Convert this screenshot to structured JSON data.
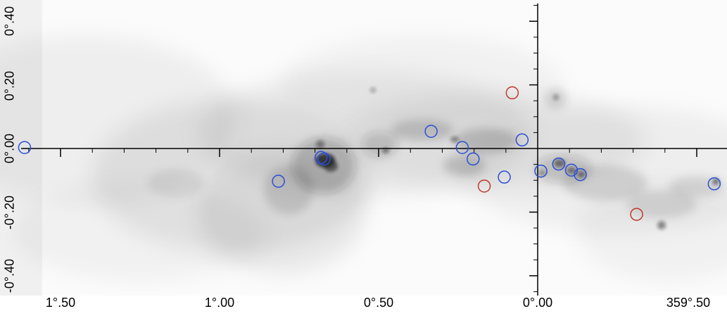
{
  "image": {
    "colormap": "inverted-grayscale",
    "background": "#ffffff",
    "emission_color": "#1a1a1a"
  },
  "axes": {
    "x_ticks": [
      "1°.50",
      "1°.00",
      "0°.50",
      "0°.00",
      "359°.50"
    ],
    "y_ticks": [
      "0°.40",
      "0°.20",
      "0°.00",
      "-0°.20",
      "-0°.40"
    ]
  },
  "markers": {
    "blue_color": "#2a4fd6",
    "red_color": "#c0392b",
    "blue": [
      {
        "l": 1.613,
        "b": 0.003
      },
      {
        "l": 0.815,
        "b": -0.103
      },
      {
        "l": 0.681,
        "b": -0.028
      },
      {
        "l": 0.671,
        "b": -0.033
      },
      {
        "l": 0.335,
        "b": 0.054
      },
      {
        "l": 0.237,
        "b": 0.003
      },
      {
        "l": 0.203,
        "b": -0.033
      },
      {
        "l": 0.105,
        "b": -0.09
      },
      {
        "l": 0.049,
        "b": 0.027
      },
      {
        "l": -0.01,
        "b": -0.071
      },
      {
        "l": -0.066,
        "b": -0.049
      },
      {
        "l": -0.106,
        "b": -0.068
      },
      {
        "l": -0.134,
        "b": -0.082
      },
      {
        "l": -0.555,
        "b": -0.111
      }
    ],
    "red": [
      {
        "l": 0.08,
        "b": 0.175
      },
      {
        "l": 0.168,
        "b": -0.118
      },
      {
        "l": -0.311,
        "b": -0.207
      }
    ]
  }
}
